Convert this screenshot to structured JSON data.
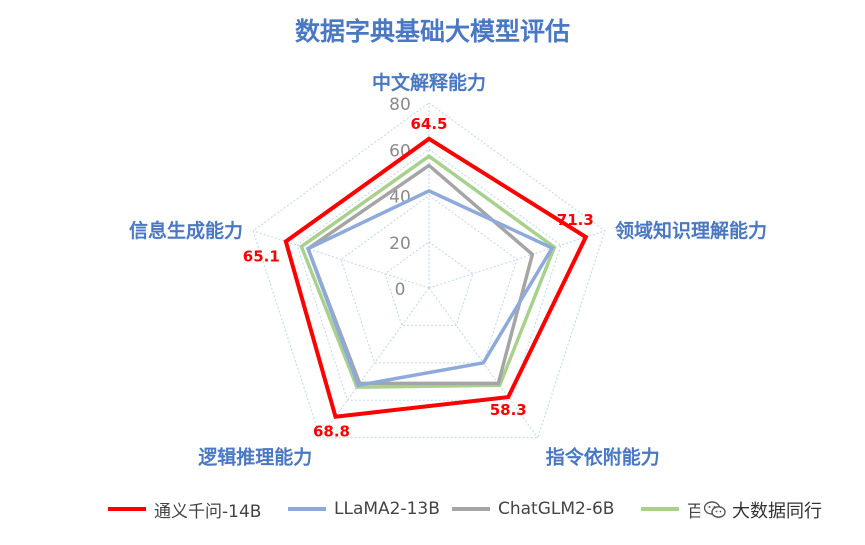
{
  "title": "数据字典基础大模型评估",
  "watermark": {
    "text": "大数据同行",
    "icon": "wechat-icon"
  },
  "chart_data": {
    "type": "radar",
    "title": "数据字典基础大模型评估",
    "axes": [
      "中文解释能力",
      "领域知识理解能力",
      "指令依附能力",
      "逻辑推理能力",
      "信息生成能力"
    ],
    "rlim": [
      0,
      80
    ],
    "rticks": [
      0,
      20,
      40,
      60,
      80
    ],
    "grid": true,
    "legend": "bottom",
    "series": [
      {
        "name": "通义千问-14B",
        "color": "#ff0000",
        "values": [
          64.5,
          71.3,
          58.3,
          68.8,
          65.1
        ],
        "labels": [
          "64.5",
          "71.3",
          "58.3",
          "68.8",
          "65.1"
        ]
      },
      {
        "name": "LLaMA2-13B",
        "color": "#8eaadb",
        "values": [
          42,
          56,
          40,
          52,
          55
        ]
      },
      {
        "name": "ChatGLM2-6B",
        "color": "#a5a5a5",
        "values": [
          53,
          47,
          51,
          51,
          55
        ]
      },
      {
        "name": "百川",
        "color": "#a9d18e",
        "values": [
          57,
          57,
          52,
          53,
          58
        ]
      }
    ]
  }
}
